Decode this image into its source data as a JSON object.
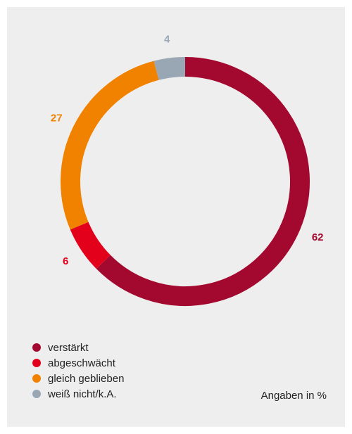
{
  "chart_data": {
    "type": "pie",
    "donut": true,
    "title": "",
    "unit_note": "Angaben in %",
    "categories": [
      "verstärkt",
      "abgeschwächt",
      "gleich geblieben",
      "weiß nicht/k.A."
    ],
    "values": [
      62,
      6,
      27,
      4
    ],
    "value_labels": [
      "62",
      "6",
      "27",
      "4"
    ],
    "colors": [
      "#a3092f",
      "#e3001b",
      "#f08200",
      "#98a7b3"
    ],
    "legend_position": "bottom-left"
  }
}
